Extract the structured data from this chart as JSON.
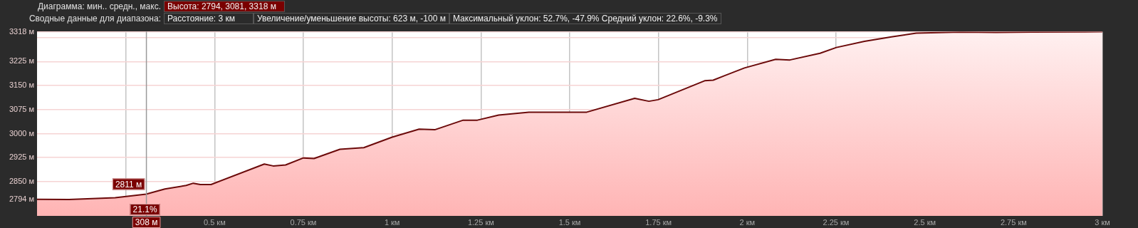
{
  "chart_data": {
    "type": "area",
    "title": "Диаграмма: мин.. средн., макс.",
    "subtitle": "Сводные данные для диапазона:",
    "annotations": [
      "Высота: 2794, 3081, 3318 м",
      "Расстояние: 3 км",
      "Увеличение/уменьшение высоты: 623 м, -100 м",
      "Максимальный уклон: 52.7%, -47.9% Средний уклон: 22.6%, -9.3%",
      {
        "text": "2811 м",
        "x": 0.308,
        "y": 2811
      },
      {
        "text": "21.1%",
        "x": 0.308
      }
    ],
    "ref_lines": [
      {
        "axis": "x",
        "value": 0.308,
        "label": "308 м",
        "color": "#9a9a9a"
      }
    ],
    "series": [
      {
        "color": "#6b0a0a",
        "x": [
          0,
          0.09,
          0.22,
          0.307,
          0.36,
          0.42,
          0.44,
          0.46,
          0.49,
          0.64,
          0.665,
          0.7,
          0.75,
          0.78,
          0.853,
          0.92,
          1.0,
          1.076,
          1.12,
          1.2,
          1.24,
          1.3,
          1.385,
          1.548,
          1.683,
          1.723,
          1.749,
          1.88,
          1.904,
          1.992,
          2.08,
          2.12,
          2.205,
          2.251,
          2.33,
          2.406,
          2.476,
          2.6,
          2.7,
          2.8,
          3.0
        ],
        "values": [
          2795,
          2794,
          2800,
          2811,
          2827,
          2838,
          2845,
          2841,
          2841,
          2905,
          2899,
          2902,
          2924,
          2922,
          2951,
          2956,
          2989,
          3014,
          3012,
          3042,
          3042,
          3058,
          3067,
          3067,
          3110,
          3101,
          3106,
          3165,
          3167,
          3205,
          3232,
          3230,
          3251,
          3269,
          3288,
          3302,
          3314,
          3317,
          3316,
          3317,
          3318
        ]
      }
    ],
    "xlim": [
      0,
      3
    ],
    "xticks": [
      {
        "value": 0.25,
        "label": null
      },
      {
        "value": 0.5,
        "label": "0.5 км"
      },
      {
        "value": 0.75,
        "label": "0.75 км"
      },
      {
        "value": 1,
        "label": "1 км"
      },
      {
        "value": 1.25,
        "label": "1.25 км"
      },
      {
        "value": 1.5,
        "label": "1.5 км"
      },
      {
        "value": 1.75,
        "label": "1.75 км"
      },
      {
        "value": 2,
        "label": "2 км"
      },
      {
        "value": 2.25,
        "label": "2.25 км"
      },
      {
        "value": 2.5,
        "label": "2.5 км"
      },
      {
        "value": 2.75,
        "label": "2.75 км"
      },
      {
        "value": 3,
        "label": "3 км"
      }
    ],
    "ylim": [
      2743,
      3318
    ],
    "yticks": [
      {
        "value": 2794,
        "label": "2794 м"
      },
      {
        "value": 2850,
        "label": "2850 м"
      },
      {
        "value": 2925,
        "label": "2925 м"
      },
      {
        "value": 3000,
        "label": "3000 м"
      },
      {
        "value": 3075,
        "label": "3075 м"
      },
      {
        "value": 3150,
        "label": "3150 м"
      },
      {
        "value": 3225,
        "label": "3225 м"
      },
      {
        "value": 3300,
        "label": null
      },
      {
        "value": 3318,
        "label": "3318 м"
      }
    ],
    "grid": true,
    "legend": false,
    "marker": "none",
    "line_style": "solid"
  }
}
